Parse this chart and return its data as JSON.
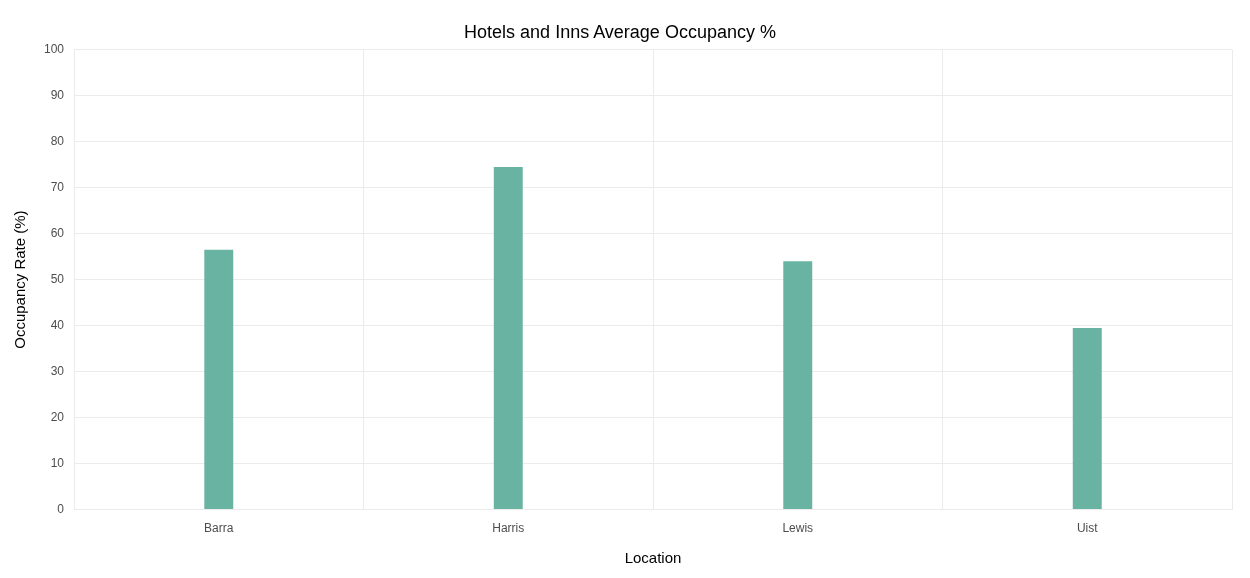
{
  "chart_data": {
    "type": "bar",
    "title": "Hotels and Inns Average Occupancy %",
    "xlabel": "Location",
    "ylabel": "Occupancy Rate (%)",
    "categories": [
      "Barra",
      "Harris",
      "Lewis",
      "Uist"
    ],
    "values": [
      56.5,
      74.5,
      54,
      39.5
    ],
    "color": "#69b3a2",
    "ylim": [
      0,
      100
    ],
    "yticks": [
      0,
      10,
      20,
      30,
      40,
      50,
      60,
      70,
      80,
      90,
      100
    ],
    "grid": true
  }
}
